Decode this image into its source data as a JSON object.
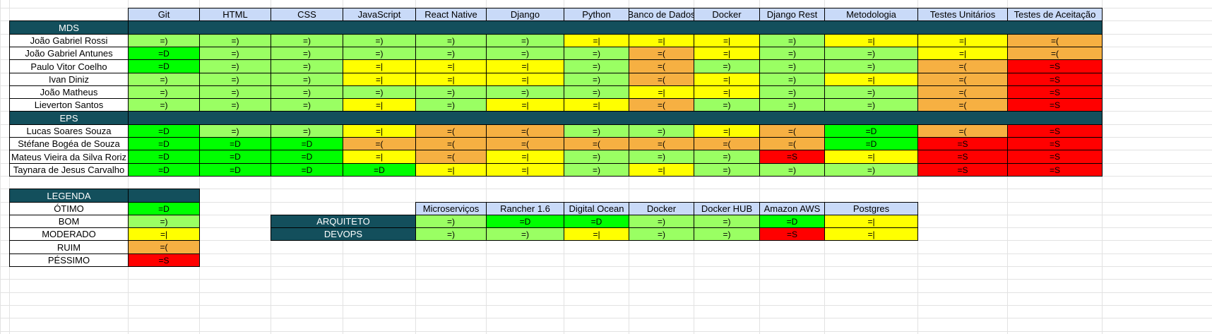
{
  "colors": {
    "otimo": "#00ff00",
    "bom": "#9aff63",
    "moderado": "#ffff00",
    "ruim": "#f6b042",
    "pessimo": "#ff0000",
    "header_bg": "#c9daf8",
    "band_bg": "#134f5c",
    "band_fg": "#ffffff"
  },
  "codes": {
    "=D": "otimo",
    "=)": "bom",
    "=|": "moderado",
    "=(": "ruim",
    "=S": "pessimo"
  },
  "skills_headers": [
    "Git",
    "HTML",
    "CSS",
    "JavaScript",
    "React Native",
    "Django",
    "Python",
    "Banco de Dados",
    "Docker",
    "Django Rest",
    "Metodologia",
    "Testes Unitários",
    "Testes de Aceitação"
  ],
  "groups": [
    {
      "label": "MDS",
      "rows": [
        {
          "name": "João Gabriel Rossi",
          "values": [
            "=)",
            "=)",
            "=)",
            "=)",
            "=)",
            "=)",
            "=|",
            "=|",
            "=|",
            "=)",
            "=|",
            "=|",
            "=("
          ]
        },
        {
          "name": "João Gabriel Antunes",
          "values": [
            "=D",
            "=)",
            "=)",
            "=)",
            "=)",
            "=)",
            "=)",
            "=(",
            "=|",
            "=)",
            "=)",
            "=|",
            "=("
          ]
        },
        {
          "name": "Paulo Vitor Coelho",
          "values": [
            "=D",
            "=)",
            "=)",
            "=|",
            "=|",
            "=|",
            "=)",
            "=(",
            "=)",
            "=)",
            "=)",
            "=(",
            "=S"
          ]
        },
        {
          "name": "Ivan Diniz",
          "values": [
            "=)",
            "=)",
            "=)",
            "=|",
            "=|",
            "=|",
            "=)",
            "=(",
            "=|",
            "=)",
            "=|",
            "=(",
            "=S"
          ]
        },
        {
          "name": "João Matheus",
          "values": [
            "=)",
            "=)",
            "=)",
            "=)",
            "=)",
            "=)",
            "=)",
            "=|",
            "=|",
            "=)",
            "=)",
            "=(",
            "=S"
          ]
        },
        {
          "name": "Lieverton Santos",
          "values": [
            "=)",
            "=)",
            "=)",
            "=|",
            "=)",
            "=|",
            "=|",
            "=(",
            "=)",
            "=)",
            "=)",
            "=(",
            "=S"
          ]
        }
      ]
    },
    {
      "label": "EPS",
      "rows": [
        {
          "name": "Lucas Soares Souza",
          "values": [
            "=D",
            "=)",
            "=)",
            "=|",
            "=(",
            "=(",
            "=)",
            "=)",
            "=|",
            "=(",
            "=D",
            "=(",
            "=S"
          ]
        },
        {
          "name": "Stéfane Bogéa de Souza",
          "values": [
            "=D",
            "=D",
            "=D",
            "=(",
            "=(",
            "=(",
            "=(",
            "=(",
            "=(",
            "=(",
            "=D",
            "=S",
            "=S"
          ]
        },
        {
          "name": "Mateus Vieira da Silva Roriz",
          "values": [
            "=D",
            "=D",
            "=D",
            "=|",
            "=(",
            "=|",
            "=)",
            "=)",
            "=)",
            "=S",
            "=|",
            "=S",
            "=S"
          ]
        },
        {
          "name": "Taynara de Jesus Carvalho",
          "values": [
            "=D",
            "=D",
            "=D",
            "=D",
            "=|",
            "=|",
            "=)",
            "=|",
            "=)",
            "=)",
            "=)",
            "=S",
            "=S"
          ]
        }
      ]
    }
  ],
  "legend": {
    "title": "LEGENDA",
    "items": [
      {
        "label": "ÓTIMO",
        "code": "=D"
      },
      {
        "label": "BOM",
        "code": "=)"
      },
      {
        "label": "MODERADO",
        "code": "=|"
      },
      {
        "label": "RUIM",
        "code": "=("
      },
      {
        "label": "PÉSSIMO",
        "code": "=S"
      }
    ]
  },
  "infra": {
    "headers": [
      "Microserviços",
      "Rancher 1.6",
      "Digital Ocean",
      "Docker",
      "Docker HUB",
      "Amazon AWS",
      "Postgres"
    ],
    "rows": [
      {
        "role": "ARQUITETO",
        "values": [
          "=)",
          "=D",
          "=D",
          "=)",
          "=)",
          "=D",
          "=|"
        ]
      },
      {
        "role": "DEVOPS",
        "values": [
          "=)",
          "=)",
          "=|",
          "=)",
          "=)",
          "=S",
          "=|"
        ]
      }
    ]
  }
}
